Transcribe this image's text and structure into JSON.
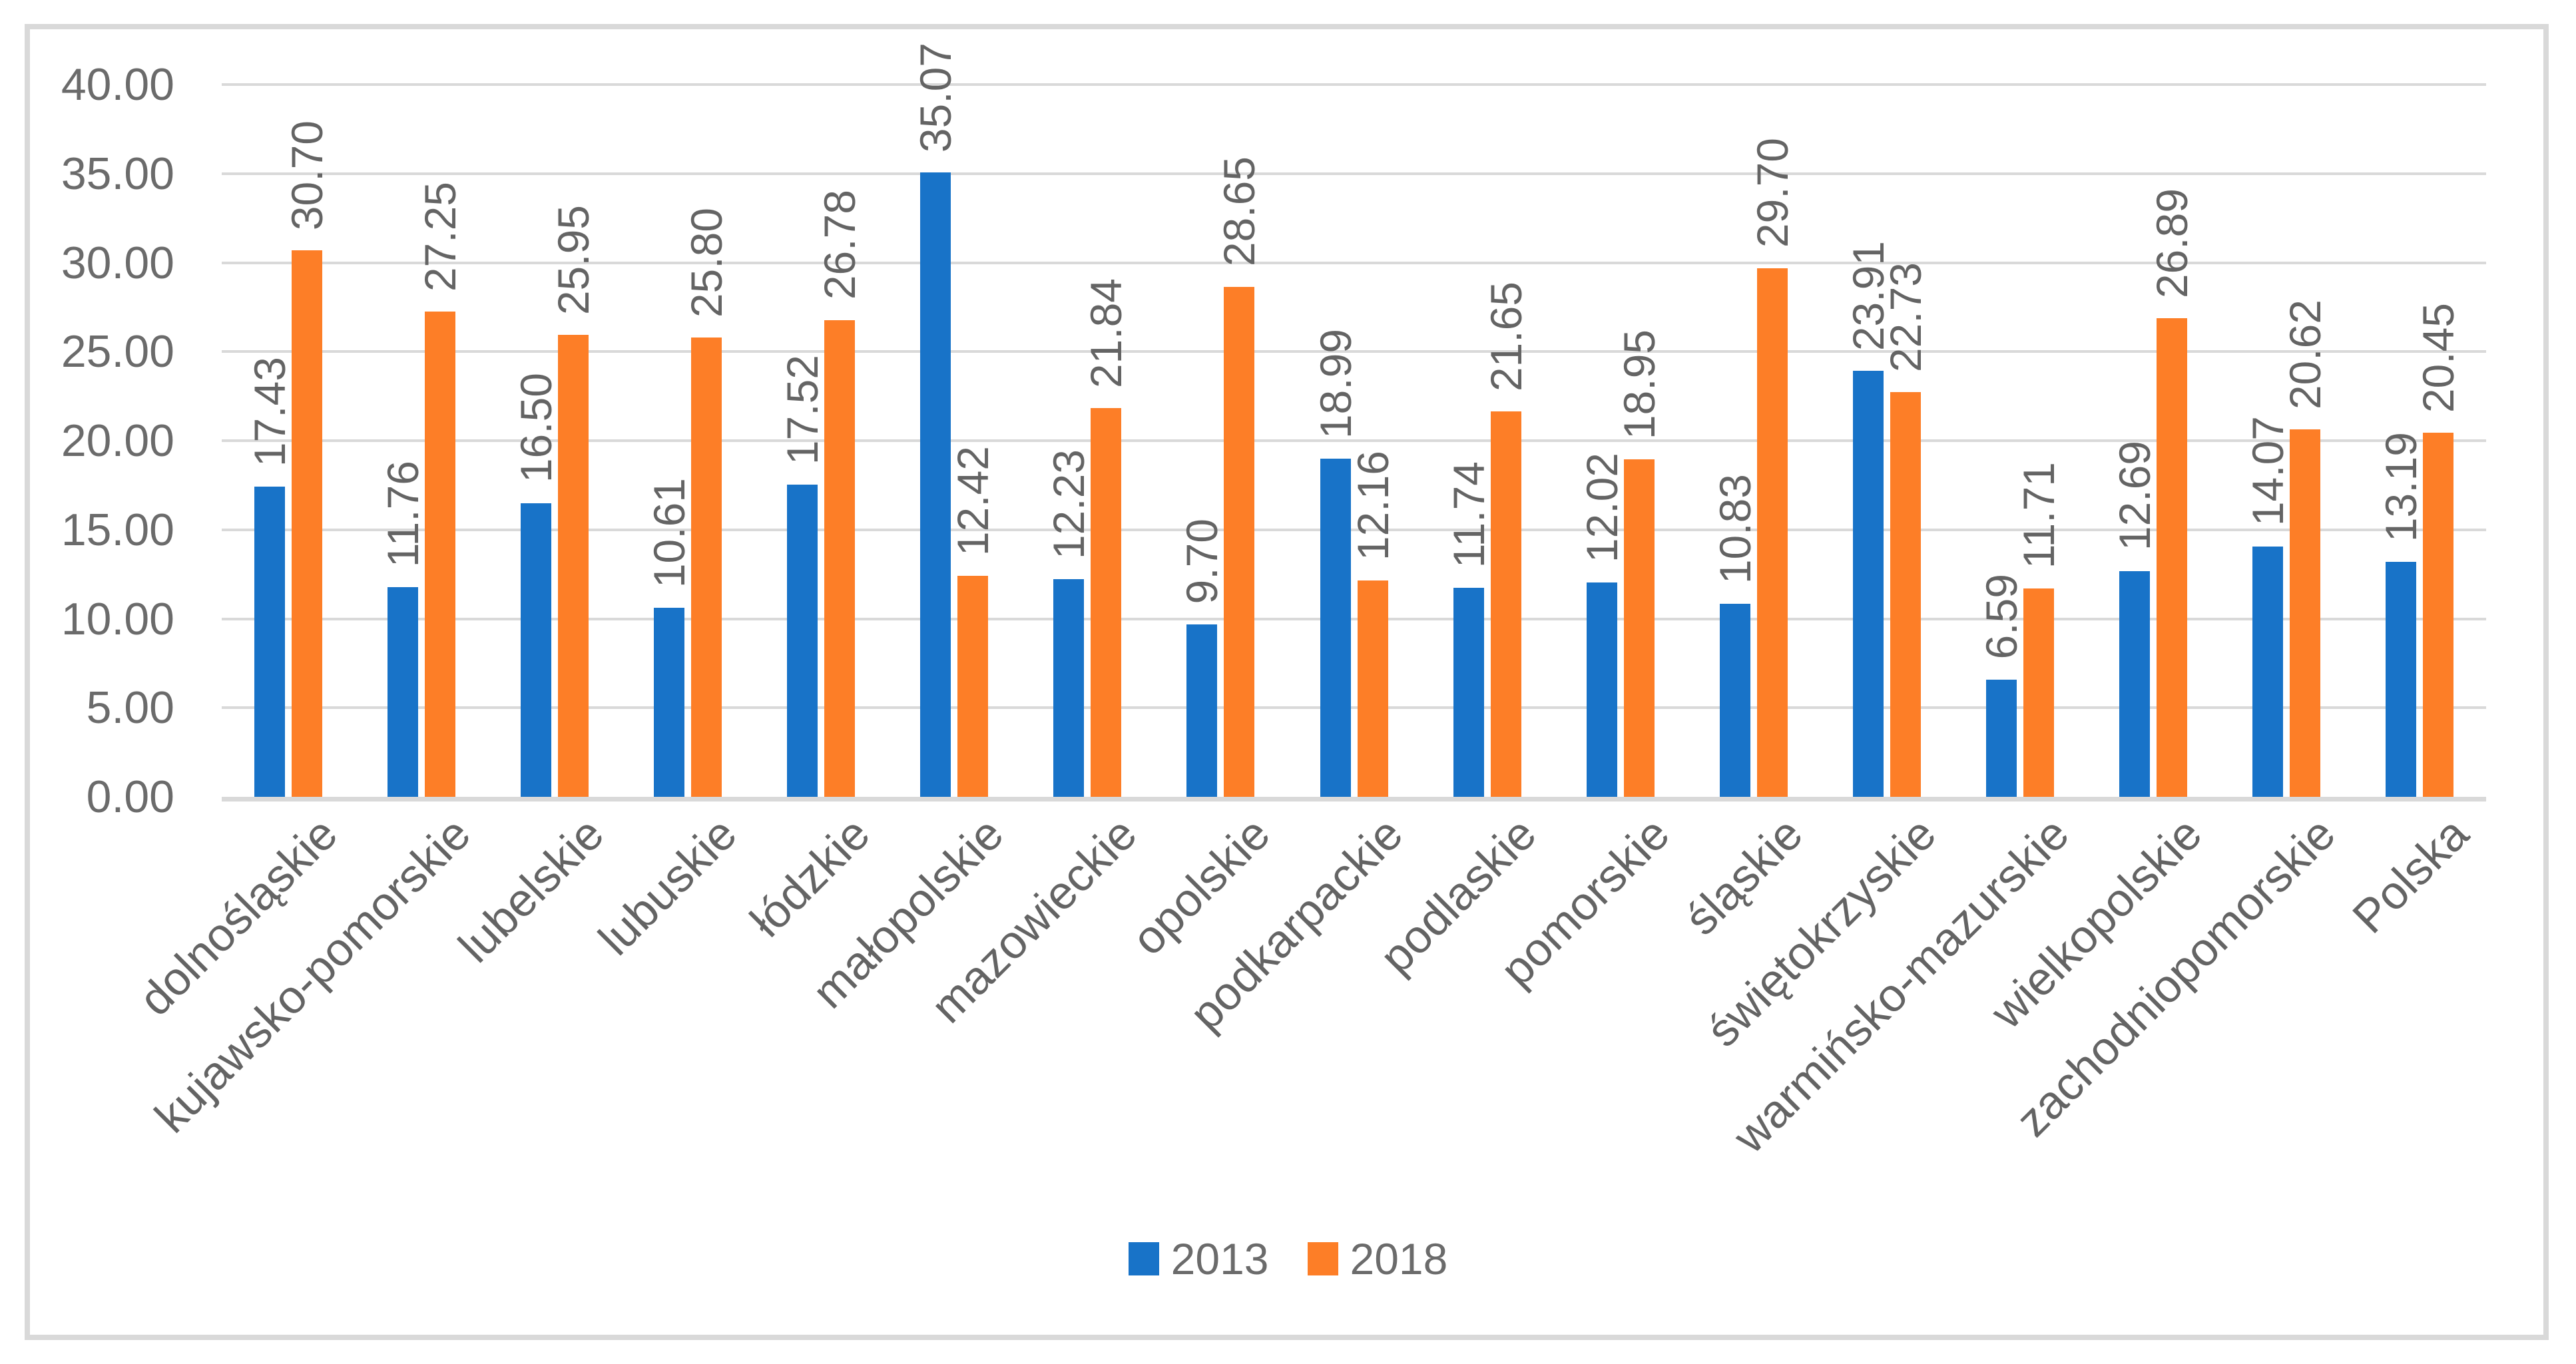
{
  "chart_data": {
    "type": "bar",
    "title": "",
    "xlabel": "",
    "ylabel": "",
    "categories": [
      "dolnośląskie",
      "kujawsko-pomorskie",
      "lubelskie",
      "lubuskie",
      "łódzkie",
      "małopolskie",
      "mazowieckie",
      "opolskie",
      "podkarpackie",
      "podlaskie",
      "pomorskie",
      "śląskie",
      "świętokrzyskie",
      "warmińsko-mazurskie",
      "wielkopolskie",
      "zachodniopomorskie",
      "Polska"
    ],
    "series": [
      {
        "name": "2013",
        "color": "#1873C8",
        "values": [
          17.43,
          11.76,
          16.5,
          10.61,
          17.52,
          35.07,
          12.23,
          9.7,
          18.99,
          11.74,
          12.02,
          10.83,
          23.91,
          6.59,
          12.69,
          14.07,
          13.19
        ]
      },
      {
        "name": "2018",
        "color": "#FD7E27",
        "values": [
          30.7,
          27.25,
          25.95,
          25.8,
          26.78,
          12.42,
          21.84,
          28.65,
          12.16,
          21.65,
          18.95,
          29.7,
          22.73,
          11.71,
          26.89,
          20.62,
          20.45
        ]
      }
    ],
    "ylim": [
      0,
      40
    ],
    "ytick_step": 5,
    "ytick_decimals": 2,
    "value_label_decimals": 2,
    "grid": true,
    "legend_position": "bottom",
    "legend_entries": [
      "2013",
      "2018"
    ]
  },
  "styles": {
    "background": "#FFFFFF",
    "frame_border_color": "#D9D9D9",
    "grid_color": "#D9D9D9",
    "axis_text_color": "#6B6B6B",
    "data_label_color": "#646464",
    "series_colors": {
      "2013": "#1873C8",
      "2018": "#FD7E27"
    }
  }
}
